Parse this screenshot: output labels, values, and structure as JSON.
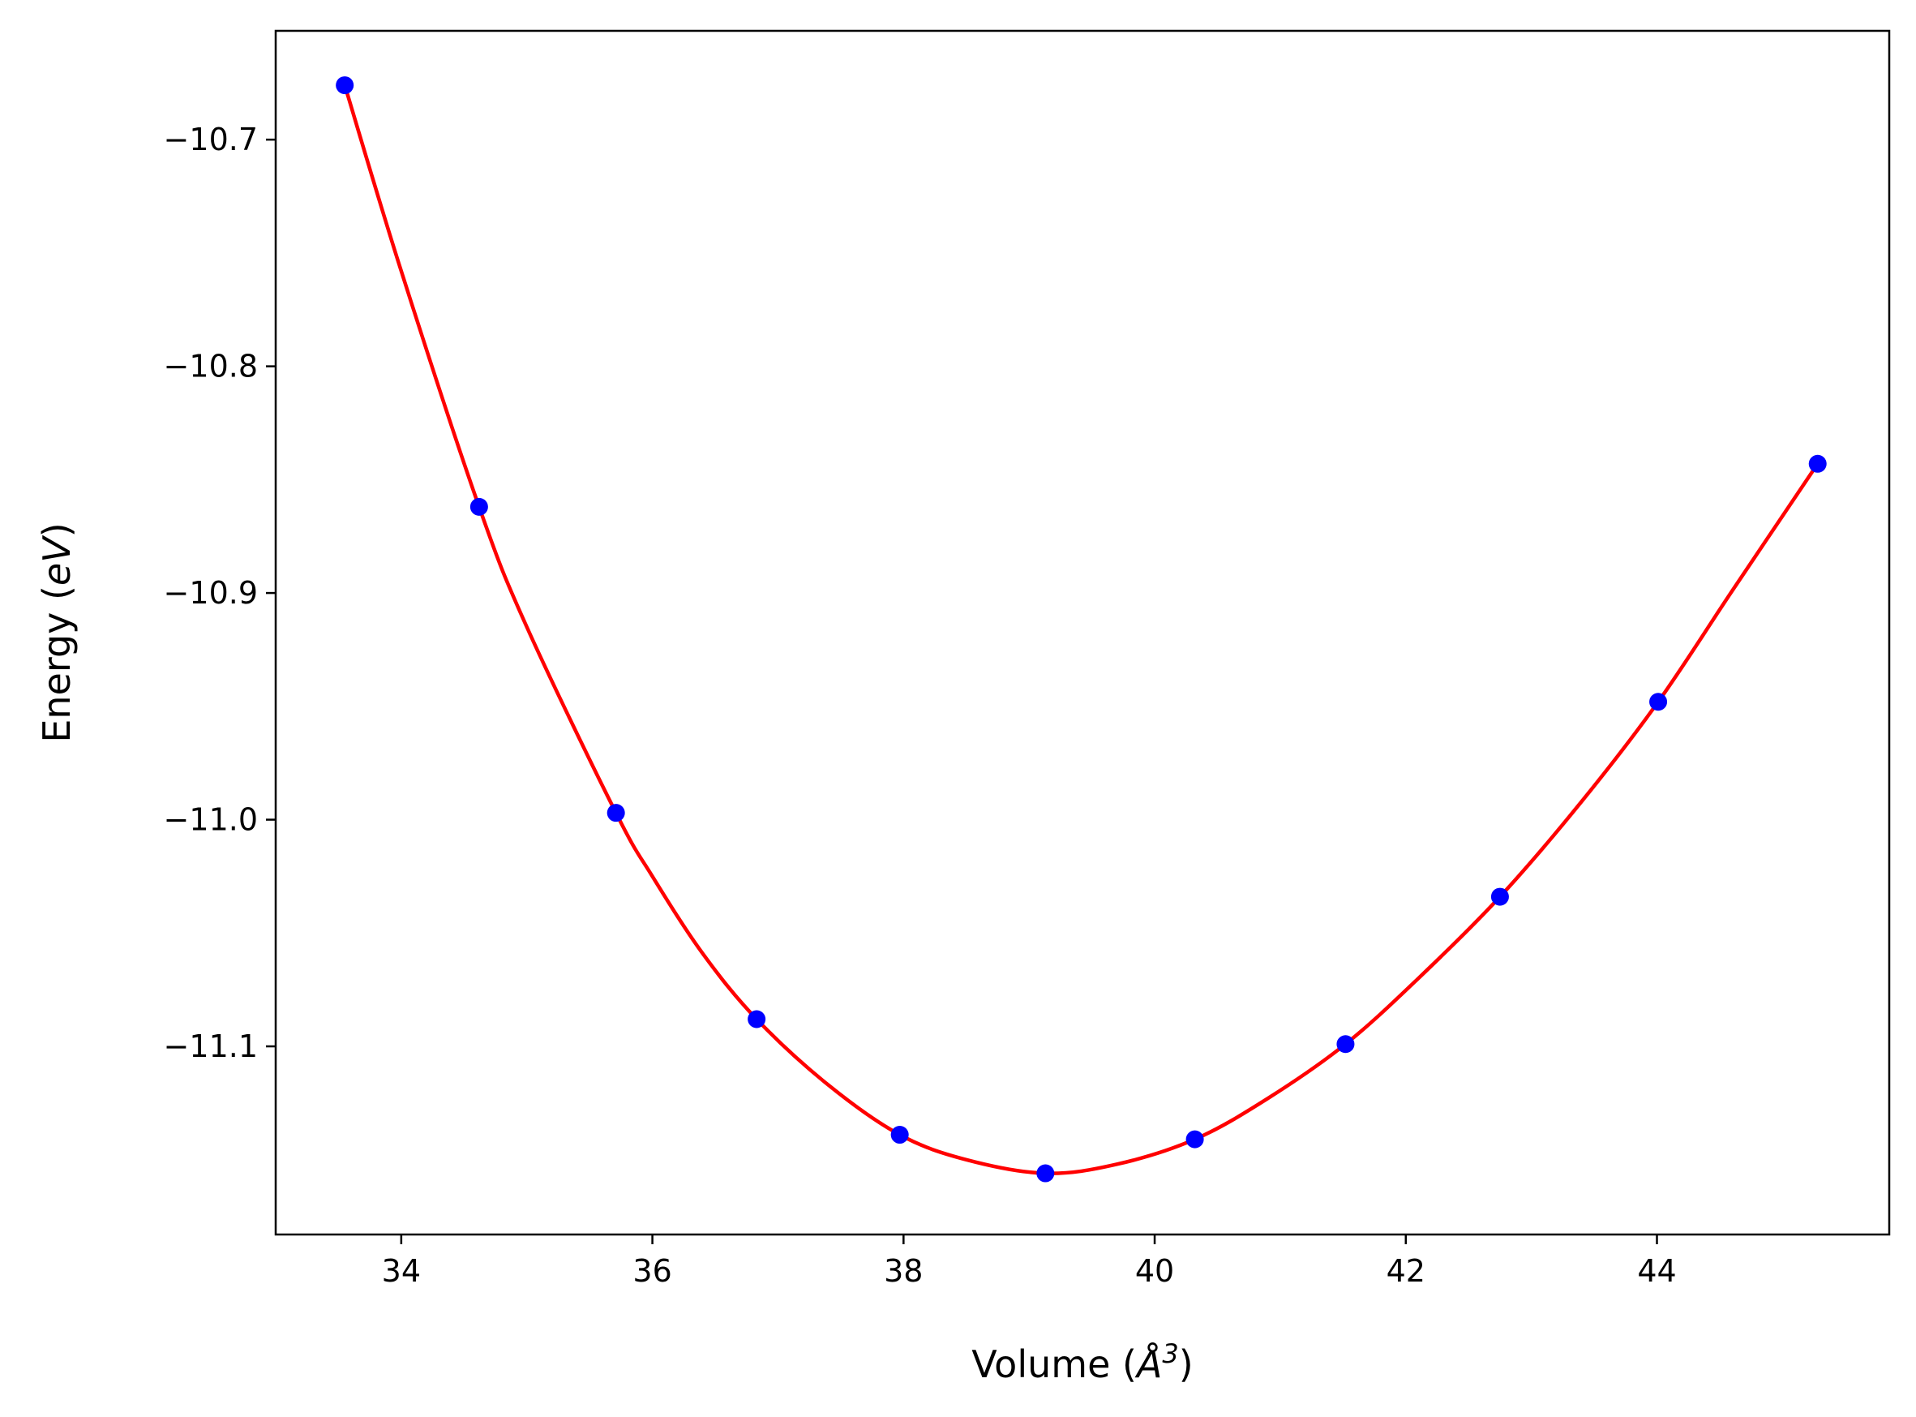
{
  "chart_data": {
    "type": "line",
    "xlabel": "Volume (Å³)",
    "xlabel_parts": {
      "prefix": "Volume (",
      "symbol": "Å",
      "superscript": "3",
      "suffix": ")"
    },
    "ylabel": "Energy (eV)",
    "ylabel_parts": {
      "prefix": "Energy (",
      "unit": "eV",
      "suffix": ")"
    },
    "xlim": [
      33.0,
      45.85
    ],
    "ylim": [
      -11.183,
      -10.652
    ],
    "xticks": [
      34,
      36,
      38,
      40,
      42,
      44
    ],
    "xtick_labels": [
      "34",
      "36",
      "38",
      "40",
      "42",
      "44"
    ],
    "yticks": [
      -10.7,
      -10.8,
      -10.9,
      -11.0,
      -11.1
    ],
    "ytick_labels": [
      "−10.7",
      "−10.8",
      "−10.9",
      "−11.0",
      "−11.1"
    ],
    "grid": false,
    "series": [
      {
        "kind": "scatter",
        "color": "#0000ff",
        "x": [
          33.55,
          34.62,
          35.71,
          36.83,
          37.97,
          39.13,
          40.32,
          41.52,
          42.75,
          44.01,
          45.28
        ],
        "y": [
          -10.676,
          -10.862,
          -10.997,
          -11.088,
          -11.139,
          -11.156,
          -11.141,
          -11.099,
          -11.034,
          -10.948,
          -10.843
        ]
      },
      {
        "kind": "fit-curve",
        "color": "#ff0000",
        "x": [
          33.55,
          34.0,
          34.62,
          35.0,
          35.71,
          36.0,
          36.4,
          36.83,
          37.4,
          37.97,
          38.5,
          39.13,
          39.7,
          40.32,
          40.9,
          41.52,
          42.1,
          42.75,
          43.4,
          44.01,
          44.6,
          45.28
        ],
        "y": [
          -10.676,
          -10.758,
          -10.862,
          -10.915,
          -10.997,
          -11.025,
          -11.059,
          -11.088,
          -11.117,
          -11.139,
          -11.15,
          -11.156,
          -11.152,
          -11.141,
          -11.123,
          -11.099,
          -11.07,
          -11.034,
          -10.992,
          -10.948,
          -10.899,
          -10.843
        ]
      }
    ]
  }
}
